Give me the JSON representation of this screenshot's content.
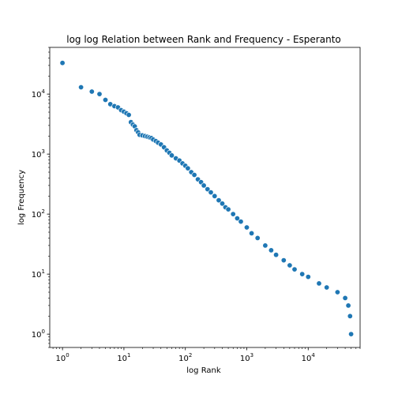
{
  "chart_data": {
    "type": "scatter",
    "title": "log log Relation between Rank and Frequency - Esperanto",
    "xlabel": "log Rank",
    "ylabel": "log Frequency",
    "xscale": "log",
    "yscale": "log",
    "xlim": [
      0.62,
      70000
    ],
    "ylim": [
      0.6,
      60000
    ],
    "grid": false,
    "legend": "none",
    "color": "#1f77b4",
    "x_ticks": [
      {
        "value": 1,
        "label": "10^0"
      },
      {
        "value": 10,
        "label": "10^1"
      },
      {
        "value": 100,
        "label": "10^2"
      },
      {
        "value": 1000,
        "label": "10^3"
      },
      {
        "value": 10000,
        "label": "10^4"
      }
    ],
    "y_ticks": [
      {
        "value": 1,
        "label": "10^0"
      },
      {
        "value": 10,
        "label": "10^1"
      },
      {
        "value": 100,
        "label": "10^2"
      },
      {
        "value": 1000,
        "label": "10^3"
      },
      {
        "value": 10000,
        "label": "10^4"
      }
    ],
    "points": [
      [
        1,
        33000
      ],
      [
        2,
        13000
      ],
      [
        3,
        11000
      ],
      [
        4,
        10000
      ],
      [
        5,
        8000
      ],
      [
        6,
        6800
      ],
      [
        7,
        6300
      ],
      [
        8,
        6000
      ],
      [
        9,
        5400
      ],
      [
        10,
        5100
      ],
      [
        11,
        4800
      ],
      [
        12,
        4500
      ],
      [
        13,
        3400
      ],
      [
        14,
        3100
      ],
      [
        15,
        2900
      ],
      [
        16,
        2500
      ],
      [
        17,
        2300
      ],
      [
        18,
        2100
      ],
      [
        20,
        2050
      ],
      [
        22,
        2000
      ],
      [
        24,
        1950
      ],
      [
        26,
        1900
      ],
      [
        28,
        1850
      ],
      [
        30,
        1750
      ],
      [
        33,
        1650
      ],
      [
        36,
        1550
      ],
      [
        40,
        1450
      ],
      [
        45,
        1300
      ],
      [
        50,
        1150
      ],
      [
        55,
        1050
      ],
      [
        60,
        950
      ],
      [
        70,
        850
      ],
      [
        80,
        780
      ],
      [
        90,
        700
      ],
      [
        100,
        640
      ],
      [
        110,
        580
      ],
      [
        125,
        500
      ],
      [
        140,
        450
      ],
      [
        160,
        380
      ],
      [
        180,
        340
      ],
      [
        200,
        300
      ],
      [
        230,
        260
      ],
      [
        260,
        230
      ],
      [
        300,
        200
      ],
      [
        350,
        170
      ],
      [
        400,
        150
      ],
      [
        450,
        130
      ],
      [
        500,
        120
      ],
      [
        600,
        100
      ],
      [
        700,
        85
      ],
      [
        800,
        75
      ],
      [
        1000,
        60
      ],
      [
        1200,
        48
      ],
      [
        1500,
        40
      ],
      [
        2000,
        30
      ],
      [
        2500,
        25
      ],
      [
        3000,
        21
      ],
      [
        4000,
        17
      ],
      [
        5000,
        14
      ],
      [
        6000,
        12
      ],
      [
        8000,
        10
      ],
      [
        10000,
        9
      ],
      [
        15000,
        7
      ],
      [
        20000,
        6
      ],
      [
        30000,
        5
      ],
      [
        40000,
        4
      ],
      [
        45000,
        3
      ],
      [
        48000,
        2
      ],
      [
        50000,
        1
      ]
    ]
  }
}
